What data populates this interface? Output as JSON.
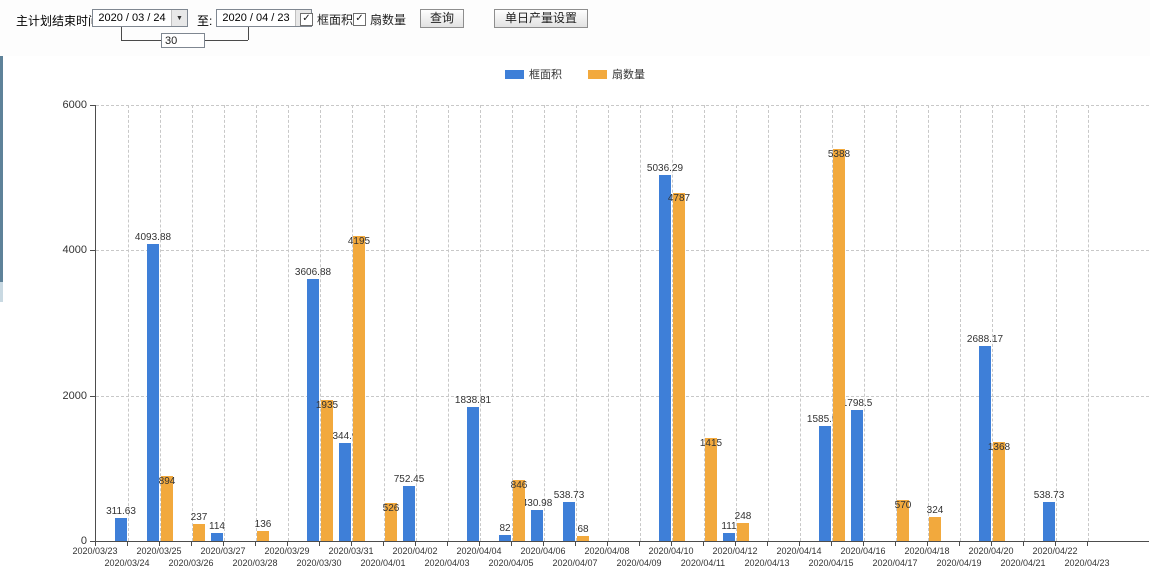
{
  "icons": {
    "dropdown": "▼",
    "check": "✓"
  },
  "toolbar": {
    "plan_end_label": "主计划结束时间:",
    "date_from": "2020 / 03 / 24",
    "to_label": "至:",
    "date_to": "2020 / 04 / 23",
    "span_days": "30",
    "checkbox_frame_area": {
      "label": "框面积",
      "checked": true
    },
    "checkbox_sash_count": {
      "label": "扇数量",
      "checked": true
    },
    "query_button": "查询",
    "daily_output_button": "单日产量设置"
  },
  "legend": [
    {
      "label": "框面积",
      "color": "#3e7fd8"
    },
    {
      "label": "扇数量",
      "color": "#f2a93d"
    }
  ],
  "chart_data": {
    "type": "bar",
    "title": "",
    "xlabel": "",
    "ylabel": "",
    "ylim": [
      0,
      6000
    ],
    "yticks": [
      0,
      2000,
      4000,
      6000
    ],
    "grid": true,
    "legend_position": "top",
    "categories": [
      "2020/03/23",
      "2020/03/24",
      "2020/03/25",
      "2020/03/26",
      "2020/03/27",
      "2020/03/28",
      "2020/03/29",
      "2020/03/30",
      "2020/03/31",
      "2020/04/01",
      "2020/04/02",
      "2020/04/03",
      "2020/04/04",
      "2020/04/05",
      "2020/04/06",
      "2020/04/07",
      "2020/04/08",
      "2020/04/09",
      "2020/04/10",
      "2020/04/11",
      "2020/04/12",
      "2020/04/13",
      "2020/04/14",
      "2020/04/15",
      "2020/04/16",
      "2020/04/17",
      "2020/04/18",
      "2020/04/19",
      "2020/04/20",
      "2020/04/21",
      "2020/04/22",
      "2020/04/23"
    ],
    "series": [
      {
        "name": "框面积",
        "color": "#3e7fd8",
        "values": [
          null,
          311.63,
          4093.88,
          null,
          114,
          null,
          null,
          3606.88,
          1344.95,
          null,
          752.45,
          null,
          1838.81,
          82,
          430.98,
          538.73,
          null,
          null,
          5036.29,
          null,
          111,
          null,
          null,
          1585.96,
          1798.5,
          null,
          null,
          null,
          2688.17,
          null,
          538.73,
          null
        ]
      },
      {
        "name": "扇数量",
        "color": "#f2a93d",
        "values": [
          null,
          null,
          894,
          237,
          null,
          136,
          null,
          1935,
          4195,
          526,
          null,
          null,
          null,
          846,
          null,
          68,
          null,
          null,
          4787,
          1415,
          248,
          null,
          null,
          5388,
          null,
          570,
          324,
          null,
          1368,
          null,
          null,
          null
        ]
      }
    ]
  }
}
